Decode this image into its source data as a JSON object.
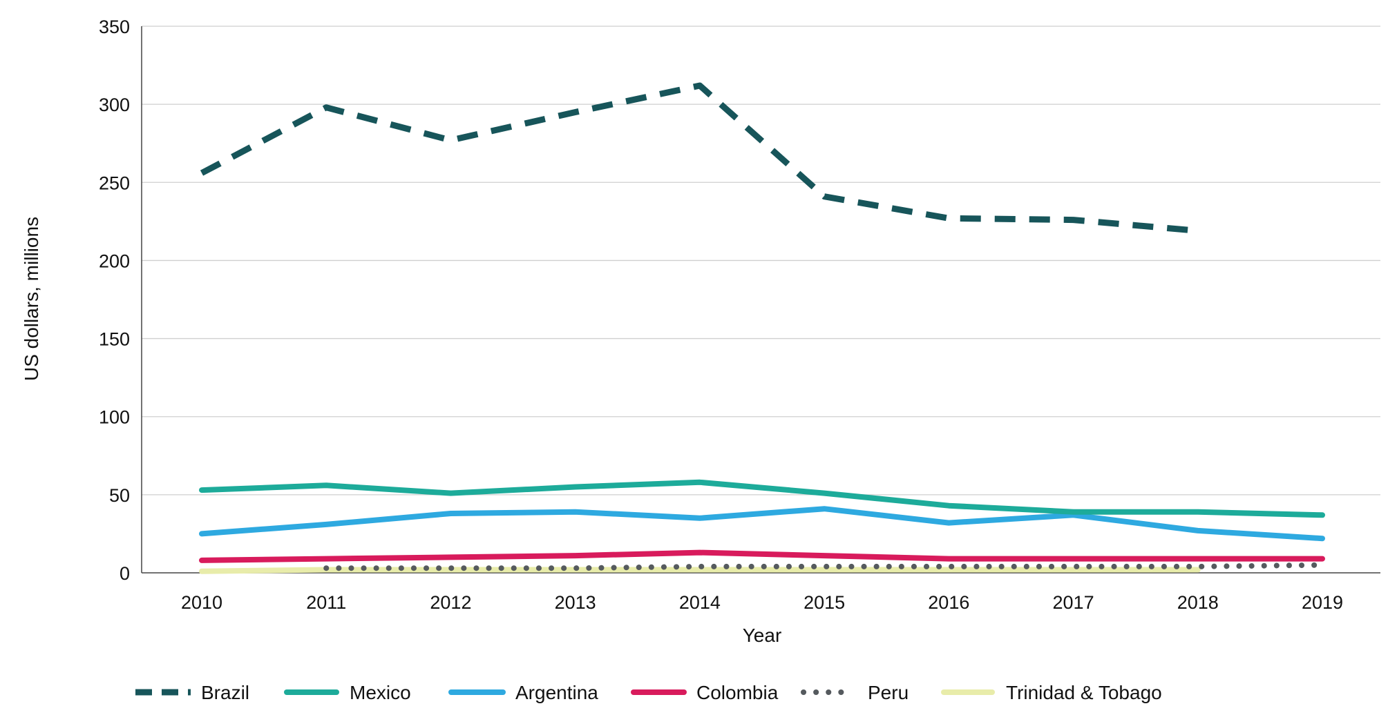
{
  "chart_data": {
    "type": "line",
    "title": "",
    "xlabel": "Year",
    "ylabel": "US dollars, millions",
    "categories": [
      "2010",
      "2011",
      "2012",
      "2013",
      "2014",
      "2015",
      "2016",
      "2017",
      "2018",
      "2019"
    ],
    "ylim": [
      0,
      350
    ],
    "yticks": [
      "0",
      "50",
      "100",
      "150",
      "200",
      "250",
      "300",
      "350"
    ],
    "grid": "horizontal",
    "legend_position": "bottom",
    "series": [
      {
        "name": "Brazil",
        "color": "#17555a",
        "style": "dashed",
        "values": [
          256,
          298,
          277,
          295,
          312,
          241,
          227,
          226,
          219,
          null
        ]
      },
      {
        "name": "Mexico",
        "color": "#1dab9a",
        "style": "solid",
        "values": [
          53,
          56,
          51,
          55,
          58,
          51,
          43,
          39,
          39,
          37
        ]
      },
      {
        "name": "Argentina",
        "color": "#2ea9e0",
        "style": "solid",
        "values": [
          25,
          31,
          38,
          39,
          35,
          41,
          32,
          37,
          27,
          22
        ]
      },
      {
        "name": "Colombia",
        "color": "#d81b5c",
        "style": "solid",
        "values": [
          8,
          9,
          10,
          11,
          13,
          11,
          9,
          9,
          9,
          9
        ]
      },
      {
        "name": "Peru",
        "color": "#555a5e",
        "style": "dotted",
        "values": [
          null,
          3,
          3,
          3,
          4,
          4,
          4,
          4,
          4,
          5
        ]
      },
      {
        "name": "Trinidad & Tobago",
        "color": "#e8ecaa",
        "style": "solid",
        "values": [
          1,
          2,
          2,
          2,
          2,
          2,
          2,
          2,
          2,
          null
        ]
      }
    ]
  }
}
